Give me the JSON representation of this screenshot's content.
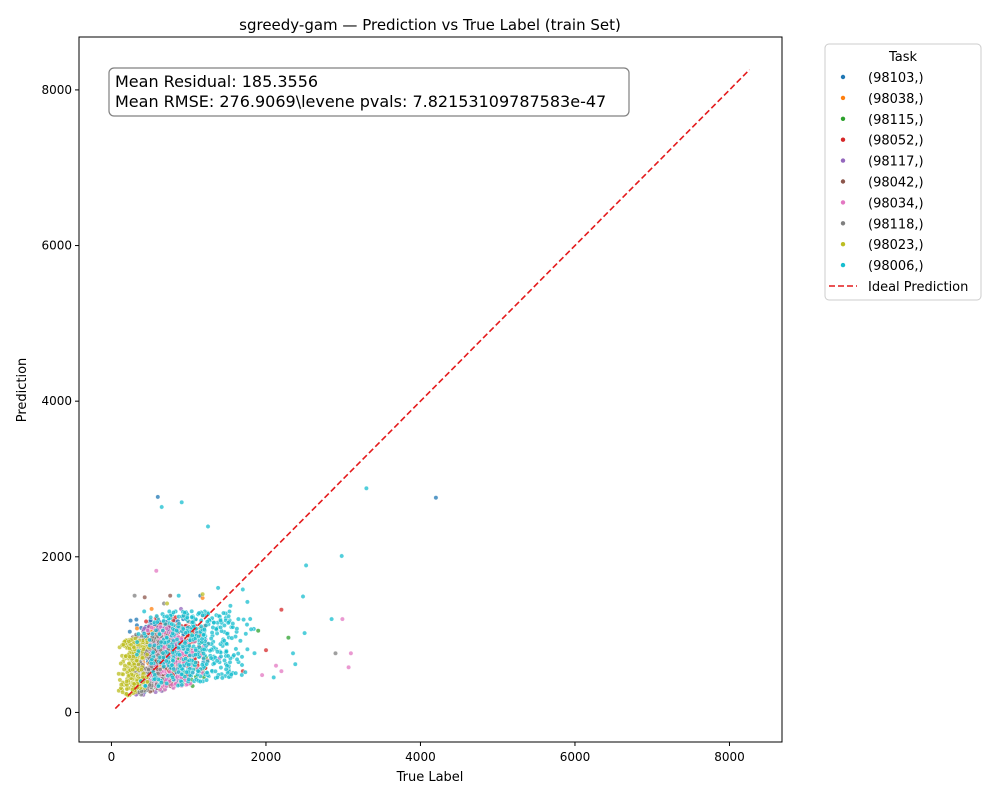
{
  "chart_data": {
    "type": "scatter",
    "title": "sgreedy-gam — Prediction vs True Label (train Set)",
    "xlabel": "True Label",
    "ylabel": "Prediction",
    "xlim": [
      -420,
      8680
    ],
    "ylim": [
      -380,
      8680
    ],
    "xticks": [
      0,
      2000,
      4000,
      6000,
      8000
    ],
    "yticks": [
      0,
      2000,
      4000,
      6000,
      8000
    ],
    "grid": false,
    "annotation": {
      "line1": "Mean Residual: 185.3556",
      "line2": "Mean RMSE: 276.9069\\levene pvals: 7.82153109787583e-47"
    },
    "legend": {
      "title": "Task",
      "placement": "outside-right",
      "ideal_label": "Ideal Prediction"
    },
    "ideal_line": {
      "x": [
        50,
        8260
      ],
      "y": [
        50,
        8260
      ],
      "color": "#e41a1c"
    },
    "series": [
      {
        "name": "(98103,)",
        "color": "#1f77b4",
        "cluster": {
          "x_range": [
            200,
            1100
          ],
          "y_range": [
            150,
            1200
          ],
          "count": 220
        },
        "extra_points": [
          [
            600,
            2770
          ],
          [
            1150,
            1500
          ],
          [
            4200,
            2760
          ]
        ]
      },
      {
        "name": "(98038,)",
        "color": "#ff7f0e",
        "cluster": {
          "x_range": [
            250,
            900
          ],
          "y_range": [
            400,
            1100
          ],
          "count": 110
        },
        "extra_points": [
          [
            1180,
            1470
          ],
          [
            520,
            1330
          ]
        ]
      },
      {
        "name": "(98115,)",
        "color": "#2ca02c",
        "cluster": {
          "x_range": [
            300,
            1300
          ],
          "y_range": [
            200,
            1100
          ],
          "count": 150
        },
        "extra_points": [
          [
            1050,
            340
          ],
          [
            2290,
            960
          ],
          [
            1900,
            1050
          ]
        ]
      },
      {
        "name": "(98052,)",
        "color": "#d62728",
        "cluster": {
          "x_range": [
            400,
            1300
          ],
          "y_range": [
            300,
            1250
          ],
          "count": 150
        },
        "extra_points": [
          [
            2200,
            1320
          ],
          [
            1700,
            530
          ],
          [
            2000,
            800
          ]
        ]
      },
      {
        "name": "(98117,)",
        "color": "#9467bd",
        "cluster": {
          "x_range": [
            250,
            1000
          ],
          "y_range": [
            150,
            1100
          ],
          "count": 140
        },
        "extra_points": [
          [
            1400,
            700
          ],
          [
            900,
            1330
          ]
        ]
      },
      {
        "name": "(98042,)",
        "color": "#8c564b",
        "cluster": {
          "x_range": [
            150,
            850
          ],
          "y_range": [
            150,
            1000
          ],
          "count": 140
        },
        "extra_points": [
          [
            760,
            1500
          ],
          [
            430,
            1480
          ]
        ]
      },
      {
        "name": "(98034,)",
        "color": "#e377c2",
        "cluster": {
          "x_range": [
            300,
            1300
          ],
          "y_range": [
            200,
            1100
          ],
          "count": 150
        },
        "extra_points": [
          [
            580,
            1820
          ],
          [
            2130,
            600
          ],
          [
            2200,
            530
          ],
          [
            2990,
            1200
          ],
          [
            3070,
            580
          ],
          [
            3100,
            760
          ],
          [
            1950,
            480
          ]
        ]
      },
      {
        "name": "(98118,)",
        "color": "#7f7f7f",
        "cluster": {
          "x_range": [
            150,
            800
          ],
          "y_range": [
            150,
            1000
          ],
          "count": 130
        },
        "extra_points": [
          [
            300,
            1500
          ],
          [
            2900,
            760
          ],
          [
            680,
            1400
          ]
        ]
      },
      {
        "name": "(98023,)",
        "color": "#bcbd22",
        "cluster": {
          "x_range": [
            80,
            500
          ],
          "y_range": [
            150,
            950
          ],
          "count": 220
        },
        "extra_points": [
          [
            720,
            1400
          ],
          [
            1180,
            1520
          ]
        ]
      },
      {
        "name": "(98006,)",
        "color": "#17becf",
        "cluster": {
          "x_range": [
            300,
            1900
          ],
          "y_range": [
            250,
            1300
          ],
          "count": 420
        },
        "extra_points": [
          [
            650,
            2640
          ],
          [
            910,
            2700
          ],
          [
            1250,
            2390
          ],
          [
            3300,
            2880
          ],
          [
            2980,
            2010
          ],
          [
            2520,
            1890
          ],
          [
            2480,
            1490
          ],
          [
            2850,
            1200
          ],
          [
            1380,
            1600
          ],
          [
            1700,
            1580
          ],
          [
            1760,
            1420
          ],
          [
            2350,
            760
          ],
          [
            2380,
            620
          ],
          [
            2100,
            450
          ],
          [
            2500,
            1020
          ],
          [
            1540,
            1370
          ],
          [
            870,
            1500
          ]
        ]
      }
    ]
  }
}
